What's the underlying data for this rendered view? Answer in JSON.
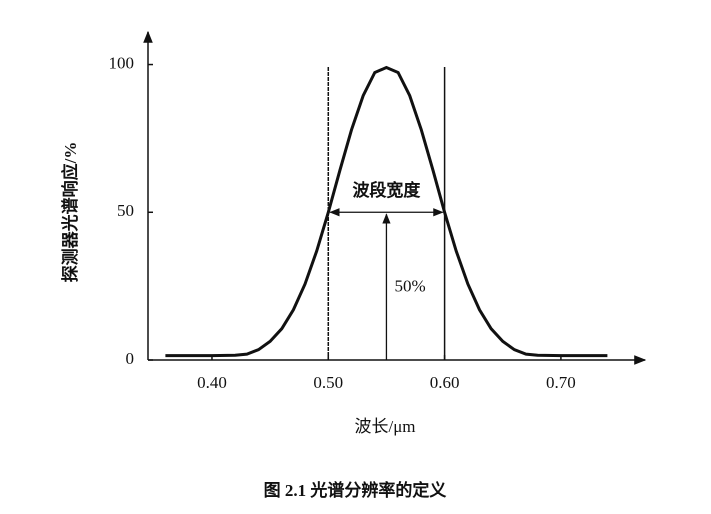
{
  "chart_data": {
    "type": "line",
    "caption": "图 2.1   光谱分辨率的定义",
    "x_label": "波长/μm",
    "y_label": "探测器光谱响应/%",
    "x": [
      0.36,
      0.38,
      0.4,
      0.42,
      0.43,
      0.44,
      0.45,
      0.46,
      0.47,
      0.48,
      0.49,
      0.5,
      0.51,
      0.52,
      0.53,
      0.54,
      0.55,
      0.56,
      0.57,
      0.58,
      0.59,
      0.6,
      0.61,
      0.62,
      0.63,
      0.64,
      0.65,
      0.66,
      0.67,
      0.68,
      0.7,
      0.72,
      0.74
    ],
    "values": [
      1.5,
      1.5,
      1.5,
      1.6,
      2,
      3.5,
      6.3,
      10.6,
      17,
      25.7,
      36.9,
      50,
      64.2,
      77.9,
      89.5,
      97.3,
      99,
      97.3,
      89.5,
      77.9,
      64.2,
      50,
      36.9,
      25.7,
      17,
      10.6,
      6.3,
      3.5,
      2,
      1.6,
      1.5,
      1.5,
      1.5
    ],
    "color": "#111111",
    "band": [
      0.5,
      0.6
    ],
    "band_level": 50,
    "center": 0.55,
    "band_label": "波段宽度",
    "level_label": "50%",
    "xlim": [
      0.345,
      0.768
    ],
    "ylim": [
      0,
      110
    ],
    "xticks": [
      {
        "value": 0.4,
        "label": "0.40"
      },
      {
        "value": 0.5,
        "label": "0.50"
      },
      {
        "value": 0.6,
        "label": "0.60"
      },
      {
        "value": 0.7,
        "label": "0.70"
      }
    ],
    "yticks": [
      0,
      50,
      100
    ]
  }
}
